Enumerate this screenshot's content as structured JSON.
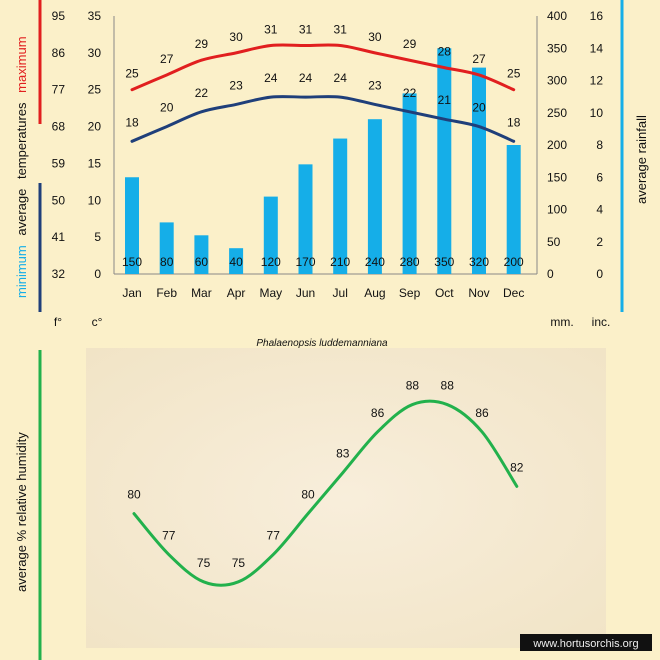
{
  "chart_data": [
    {
      "type": "bar+line",
      "title": "Phalaenopsis luddemanniana",
      "categories": [
        "Jan",
        "Feb",
        "Mar",
        "Apr",
        "May",
        "Jun",
        "Jul",
        "Aug",
        "Sep",
        "Oct",
        "Nov",
        "Dec"
      ],
      "series": [
        {
          "name": "maximum",
          "kind": "line",
          "color": "#e11f1f",
          "values": [
            25,
            27,
            29,
            30,
            31,
            31,
            31,
            30,
            29,
            28,
            27,
            25
          ]
        },
        {
          "name": "minimum",
          "kind": "line",
          "color": "#1f3f7a",
          "values": [
            18,
            20,
            22,
            23,
            24,
            24,
            24,
            23,
            22,
            21,
            20,
            18
          ]
        },
        {
          "name": "average rainfall",
          "kind": "bar",
          "color": "#15aee8",
          "values": [
            150,
            80,
            60,
            40,
            120,
            170,
            210,
            240,
            280,
            350,
            320,
            200
          ]
        }
      ],
      "axes": {
        "fahrenheit_ticks": [
          "32",
          "41",
          "50",
          "59",
          "68",
          "77",
          "86",
          "95"
        ],
        "celsius_ticks": [
          "0",
          "5",
          "10",
          "15",
          "20",
          "25",
          "30",
          "35"
        ],
        "celsius_range": [
          0,
          35
        ],
        "mm_ticks": [
          "0",
          "50",
          "100",
          "150",
          "200",
          "250",
          "300",
          "350",
          "400"
        ],
        "mm_range": [
          0,
          400
        ],
        "inch_ticks": [
          "0",
          "2",
          "4",
          "6",
          "8",
          "10",
          "12",
          "14",
          "16"
        ],
        "fahrenheit_unit": "f°",
        "celsius_unit": "c°",
        "mm_unit": "mm.",
        "inch_unit": "inc."
      },
      "left_axis_label": {
        "word_minimum": "minimum",
        "word_average": "average",
        "word_temperatures": "temperatures",
        "word_maximum": "maximum"
      },
      "right_axis_label": "average rainfall"
    },
    {
      "type": "line",
      "categories": [
        "Jan",
        "Feb",
        "Mar",
        "Apr",
        "May",
        "Jun",
        "Jul",
        "Aug",
        "Sep",
        "Oct",
        "Nov",
        "Dec"
      ],
      "series": [
        {
          "name": "average % relative humidity",
          "color": "#22b14c",
          "values": [
            80,
            77,
            75,
            75,
            77,
            80,
            83,
            86,
            88,
            88,
            86,
            82
          ]
        }
      ],
      "ylim": [
        70,
        92
      ],
      "ylabel": "average %  relative humidity"
    }
  ],
  "colors": {
    "background": "#fbf0c9",
    "max": "#e11f1f",
    "min": "#1f3f7a",
    "rain": "#15aee8",
    "humidity": "#22b14c",
    "paper": "#f5ead2"
  },
  "watermark": "www.hortusorchis.org"
}
